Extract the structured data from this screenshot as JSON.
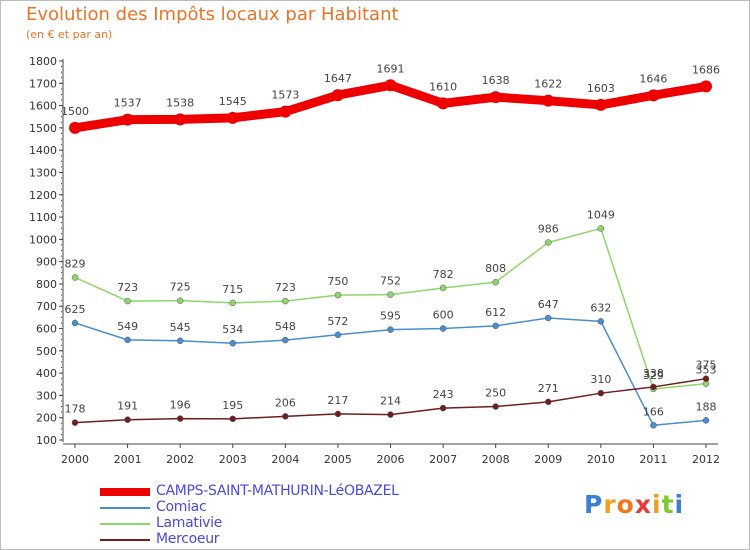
{
  "header": {
    "title": "Evolution des Impôts locaux par Habitant",
    "subtitle": "(en € et par an)"
  },
  "logo": {
    "text": "Proxiti"
  },
  "chart_data": {
    "type": "line",
    "x": [
      "2000",
      "2001",
      "2002",
      "2003",
      "2004",
      "2005",
      "2006",
      "2007",
      "2008",
      "2009",
      "2010",
      "2011",
      "2012"
    ],
    "ylim": [
      100,
      1800
    ],
    "yticks": [
      100,
      200,
      300,
      400,
      500,
      600,
      700,
      800,
      900,
      1000,
      1100,
      1200,
      1300,
      1400,
      1500,
      1600,
      1700,
      1800
    ],
    "grid": false,
    "legend_position": "bottom-left",
    "series": [
      {
        "name": "CAMPS-SAINT-MATHURIN-LéOBAZEL",
        "color": "#ee0000",
        "values": [
          1500,
          1537,
          1538,
          1545,
          1573,
          1647,
          1691,
          1610,
          1638,
          1622,
          1603,
          1646,
          1686
        ]
      },
      {
        "name": "Comiac",
        "color": "#4a8ed0",
        "values": [
          625,
          549,
          545,
          534,
          548,
          572,
          595,
          600,
          612,
          647,
          632,
          166,
          188
        ]
      },
      {
        "name": "Lamativie",
        "color": "#8ed66a",
        "values": [
          829,
          723,
          725,
          715,
          723,
          750,
          752,
          782,
          808,
          986,
          1049,
          329,
          353
        ]
      },
      {
        "name": "Mercoeur",
        "color": "#6e1e1e",
        "values": [
          178,
          191,
          196,
          195,
          206,
          217,
          214,
          243,
          250,
          271,
          310,
          338,
          375
        ]
      }
    ]
  }
}
